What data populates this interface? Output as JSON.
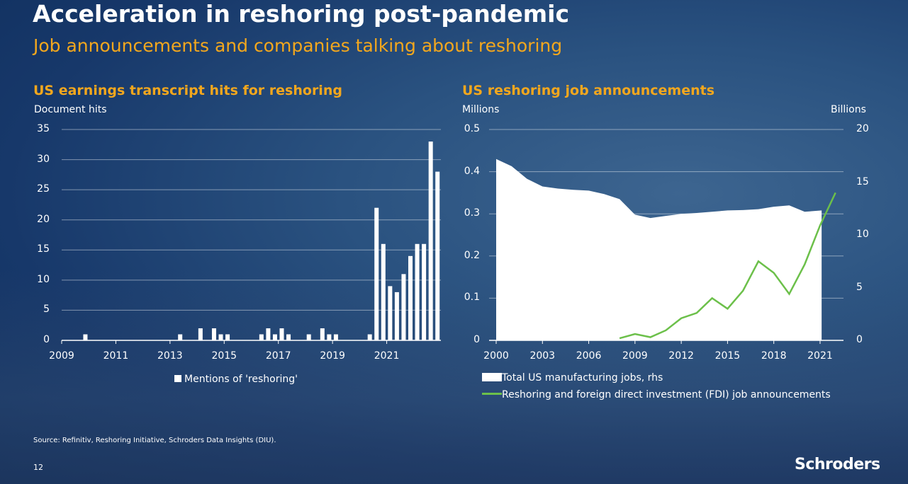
{
  "title": "Acceleration in reshoring post-pandemic",
  "subtitle": "Job announcements and companies talking about reshoring",
  "source": "Source: Refinitiv, Reshoring Initiative, Schroders Data Insights (DIU).",
  "page_number": "12",
  "logo": "Schroders",
  "colors": {
    "accent": "#f3a71d",
    "line": "#6cc04a",
    "bars": "#ffffff",
    "area": "#ffffff"
  },
  "chart_data": [
    {
      "type": "bar",
      "title": "US earnings transcript hits for reshoring",
      "ylabel": "Document hits",
      "ylim": [
        0,
        35
      ],
      "yticks": [
        "0",
        "5",
        "10",
        "15",
        "20",
        "25",
        "30",
        "35"
      ],
      "xticks": [
        "2009",
        "2011",
        "2013",
        "2015",
        "2017",
        "2019",
        "2021"
      ],
      "x_start": "2009 Q1",
      "frequency": "quarterly",
      "legend": "Mentions of 'reshoring'",
      "values": [
        0,
        0,
        0,
        1,
        0,
        0,
        0,
        0,
        0,
        0,
        0,
        0,
        0,
        0,
        0,
        0,
        0,
        1,
        0,
        0,
        2,
        0,
        2,
        1,
        1,
        0,
        0,
        0,
        0,
        1,
        2,
        1,
        2,
        1,
        0,
        0,
        1,
        0,
        2,
        1,
        1,
        0,
        0,
        0,
        0,
        1,
        22,
        16,
        9,
        8,
        11,
        14,
        16,
        16,
        33,
        28
      ]
    },
    {
      "type": "line",
      "title": "US reshoring job announcements",
      "ylabel": "Millions",
      "y2label": "Billions",
      "ylim": [
        0,
        0.5
      ],
      "y2lim": [
        0,
        20
      ],
      "yticks": [
        "0",
        "0.1",
        "0.2",
        "0.3",
        "0.4",
        "0.5"
      ],
      "y2ticks": [
        "0",
        "5",
        "10",
        "15",
        "20"
      ],
      "xticks": [
        "2000",
        "2003",
        "2006",
        "2009",
        "2012",
        "2015",
        "2018",
        "2021"
      ],
      "series": [
        {
          "name": "Total US manufacturing jobs, rhs",
          "kind": "area",
          "axis": "left",
          "x": [
            2000,
            2001,
            2002,
            2003,
            2004,
            2005,
            2006,
            2007,
            2008,
            2009,
            2010,
            2011,
            2012,
            2013,
            2014,
            2015,
            2016,
            2017,
            2018,
            2019,
            2020,
            2021.1
          ],
          "y": [
            0.43,
            0.413,
            0.383,
            0.365,
            0.36,
            0.357,
            0.355,
            0.347,
            0.335,
            0.298,
            0.29,
            0.295,
            0.3,
            0.302,
            0.305,
            0.308,
            0.309,
            0.311,
            0.317,
            0.32,
            0.305,
            0.308
          ]
        },
        {
          "name": "Reshoring and foreign direct investment (FDI) job announcements",
          "kind": "line",
          "axis": "right",
          "x": [
            2008,
            2009,
            2010,
            2011,
            2012,
            2013,
            2014,
            2015,
            2016,
            2017,
            2018,
            2019,
            2020,
            2021,
            2022
          ],
          "y": [
            0.2,
            0.6,
            0.3,
            0.95,
            2.1,
            2.6,
            4.0,
            3.0,
            4.7,
            7.5,
            6.4,
            4.4,
            7.2,
            10.9,
            14.0
          ]
        }
      ]
    }
  ]
}
